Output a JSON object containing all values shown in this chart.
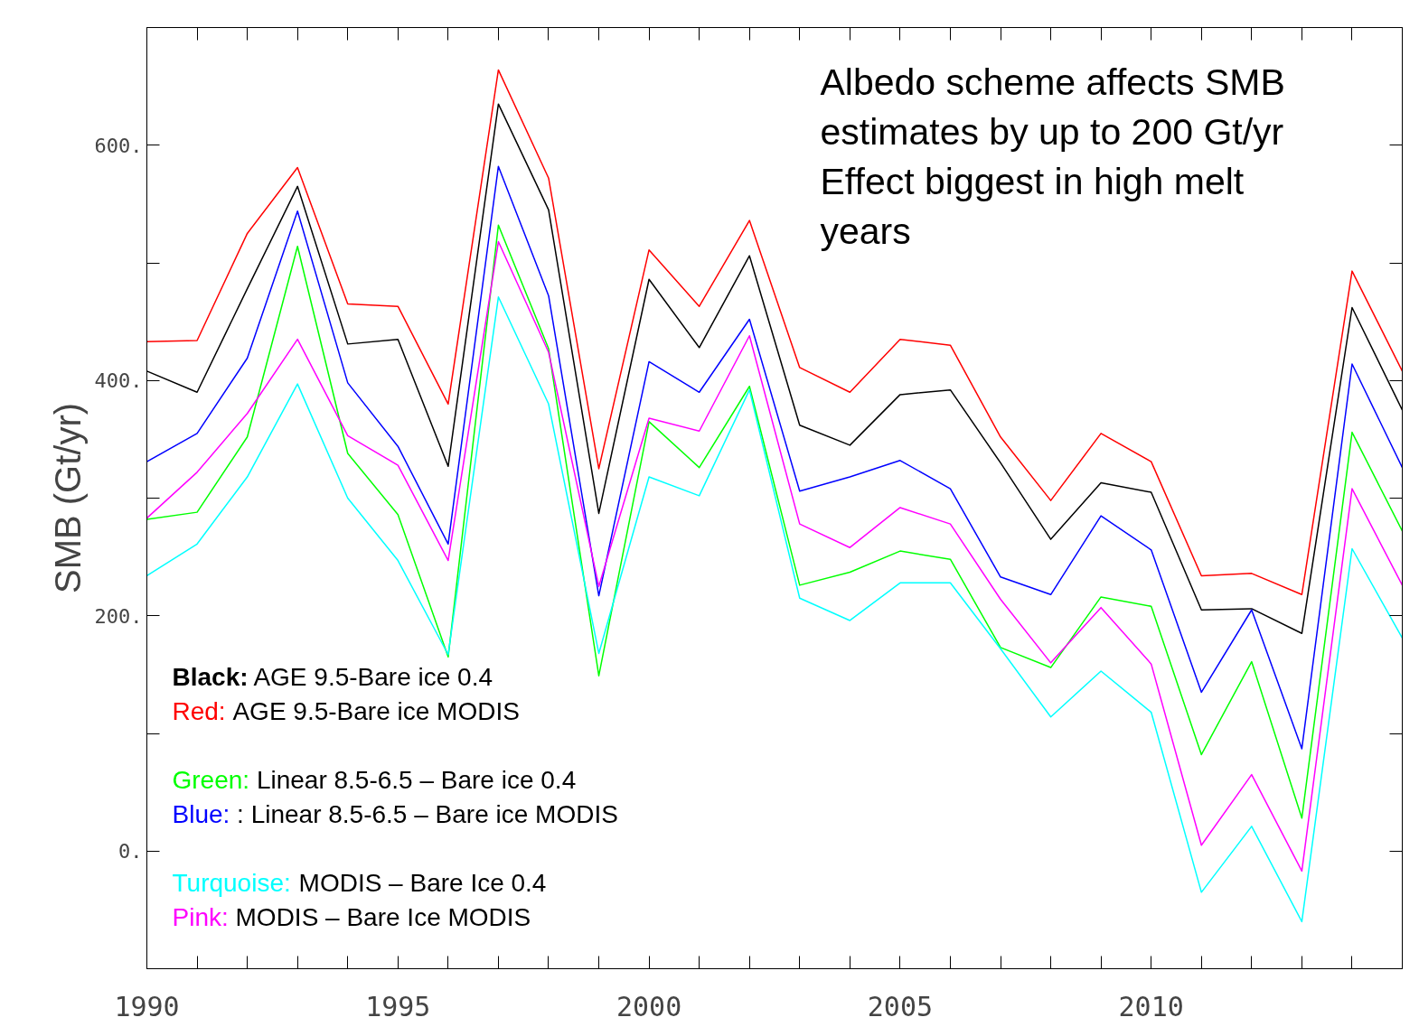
{
  "chart_data": {
    "type": "line",
    "ylabel": "SMB (Gt/yr)",
    "x": [
      1990,
      1991,
      1992,
      1993,
      1994,
      1995,
      1996,
      1997,
      1998,
      1999,
      2000,
      2001,
      2002,
      2003,
      2004,
      2005,
      2006,
      2007,
      2008,
      2009,
      2010,
      2011,
      2012,
      2013,
      2014,
      2015
    ],
    "xlim": [
      1990,
      2015
    ],
    "xticks": [
      1990,
      {
        "value": 1991,
        "label": null
      },
      {
        "value": 1992,
        "label": null
      },
      {
        "value": 1993,
        "label": null
      },
      {
        "value": 1994,
        "label": null
      },
      1995,
      {
        "value": 1996,
        "label": null
      },
      {
        "value": 1997,
        "label": null
      },
      {
        "value": 1998,
        "label": null
      },
      {
        "value": 1999,
        "label": null
      },
      2000,
      {
        "value": 2001,
        "label": null
      },
      {
        "value": 2002,
        "label": null
      },
      {
        "value": 2003,
        "label": null
      },
      {
        "value": 2004,
        "label": null
      },
      2005,
      {
        "value": 2006,
        "label": null
      },
      {
        "value": 2007,
        "label": null
      },
      {
        "value": 2008,
        "label": null
      },
      {
        "value": 2009,
        "label": null
      },
      2010,
      {
        "value": 2011,
        "label": null
      },
      {
        "value": 2012,
        "label": null
      },
      {
        "value": 2013,
        "label": null
      },
      {
        "value": 2014,
        "label": null
      },
      {
        "value": 2015,
        "label": null
      }
    ],
    "ylim": [
      -100,
      700
    ],
    "yticks": [
      {
        "value": -100,
        "label": null
      },
      {
        "value": 0,
        "label": "0."
      },
      {
        "value": 100,
        "label": null
      },
      {
        "value": 200,
        "label": "200."
      },
      {
        "value": 300,
        "label": null
      },
      {
        "value": 400,
        "label": "400."
      },
      {
        "value": 500,
        "label": null
      },
      {
        "value": 600,
        "label": "600."
      }
    ],
    "grid": false,
    "legend": "bottom left",
    "marker": "none",
    "line_style": "solid",
    "series": [
      {
        "name": "Black: AGE 9.5-Bare ice 0.4",
        "color": "#000000",
        "values": [
          408,
          390,
          478,
          565,
          431,
          435,
          327,
          635,
          545,
          287,
          486,
          428,
          506,
          362,
          345,
          388,
          392,
          330,
          265,
          313,
          305,
          205,
          206,
          185,
          462,
          375
        ]
      },
      {
        "name": "Red: AGE 9.5-Bare ice MODIS",
        "color": "#ff0000",
        "values": [
          433,
          434,
          525,
          581,
          465,
          463,
          380,
          664,
          572,
          325,
          511,
          463,
          536,
          411,
          390,
          435,
          430,
          352,
          298,
          355,
          331,
          234,
          236,
          218,
          493,
          408
        ]
      },
      {
        "name": "Green: Linear 8.5-6.5 – Bare ice 0.4",
        "color": "#00ff00",
        "values": [
          282,
          288,
          352,
          514,
          338,
          286,
          165,
          532,
          427,
          149,
          365,
          326,
          395,
          226,
          237,
          255,
          248,
          173,
          156,
          216,
          208,
          82,
          161,
          28,
          356,
          272
        ]
      },
      {
        "name": "Blue: : Linear 8.5-6.5 – Bare ice MODIS",
        "color": "#0000ff",
        "values": [
          331,
          355,
          419,
          544,
          398,
          344,
          261,
          582,
          472,
          217,
          416,
          390,
          452,
          306,
          318,
          332,
          308,
          233,
          218,
          285,
          256,
          135,
          205,
          87,
          414,
          326
        ]
      },
      {
        "name": "Turquoise: MODIS – Bare Ice 0.4",
        "color": "#00ffff",
        "values": [
          234,
          261,
          318,
          397,
          300,
          247,
          167,
          471,
          380,
          168,
          318,
          302,
          392,
          215,
          196,
          228,
          228,
          172,
          114,
          153,
          118,
          -35,
          21,
          -60,
          257,
          181
        ]
      },
      {
        "name": "Pink: MODIS – Bare Ice MODIS",
        "color": "#ff00ff",
        "values": [
          283,
          322,
          372,
          435,
          353,
          328,
          247,
          518,
          424,
          225,
          368,
          357,
          438,
          278,
          258,
          292,
          278,
          214,
          160,
          207,
          159,
          5,
          65,
          -17,
          308,
          226
        ]
      }
    ],
    "annotations": [
      "Albedo scheme affects SMB\nestimates by up to 200 Gt/yr\nEffect biggest in high melt\nyears"
    ]
  }
}
